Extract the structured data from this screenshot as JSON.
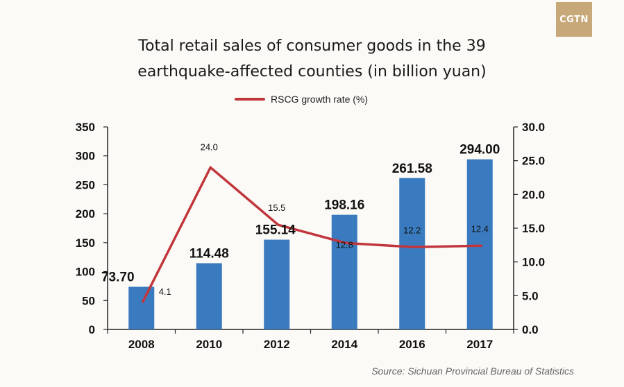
{
  "logo": "CGTN",
  "title_lines": [
    "Total retail sales of consumer goods in the 39",
    "earthquake-affected counties (in billion yuan)"
  ],
  "legend_label": "RSCG growth rate (%)",
  "source": "Source: Sichuan Provincial Bureau of Statistics",
  "colors": {
    "bar": "#3a7bbf",
    "line": "#c1363c",
    "axis": "#222222",
    "background": "#fbfaf6"
  },
  "chart_data": {
    "type": "bar",
    "categories": [
      "2008",
      "2010",
      "2012",
      "2014",
      "2016",
      "2017"
    ],
    "series": [
      {
        "values": [
          73.7,
          114.48,
          155.14,
          198.16,
          261.58,
          294.0
        ],
        "labels": [
          "73.70",
          "114.48",
          "155.14",
          "198.16",
          "261.58",
          "294.00"
        ],
        "axis": "left",
        "type": "bar"
      },
      {
        "name": "RSCG growth rate (%)",
        "values": [
          4.1,
          24.0,
          15.5,
          12.8,
          12.2,
          12.4
        ],
        "labels": [
          "4.1",
          "24.0",
          "15.5",
          "12.8",
          "12.2",
          "12.4"
        ],
        "axis": "right",
        "type": "line"
      }
    ],
    "y_left": {
      "min": 0,
      "max": 350,
      "ticks": [
        "0",
        "50",
        "100",
        "150",
        "200",
        "250",
        "300",
        "350"
      ]
    },
    "y_right": {
      "min": 0,
      "max": 30,
      "ticks": [
        "0.0",
        "5.0",
        "10.0",
        "15.0",
        "20.0",
        "25.0",
        "30.0"
      ]
    },
    "title": "Total retail sales of consumer goods in the 39 earthquake-affected counties (in billion yuan)",
    "legend": "top-center",
    "grid": false
  }
}
